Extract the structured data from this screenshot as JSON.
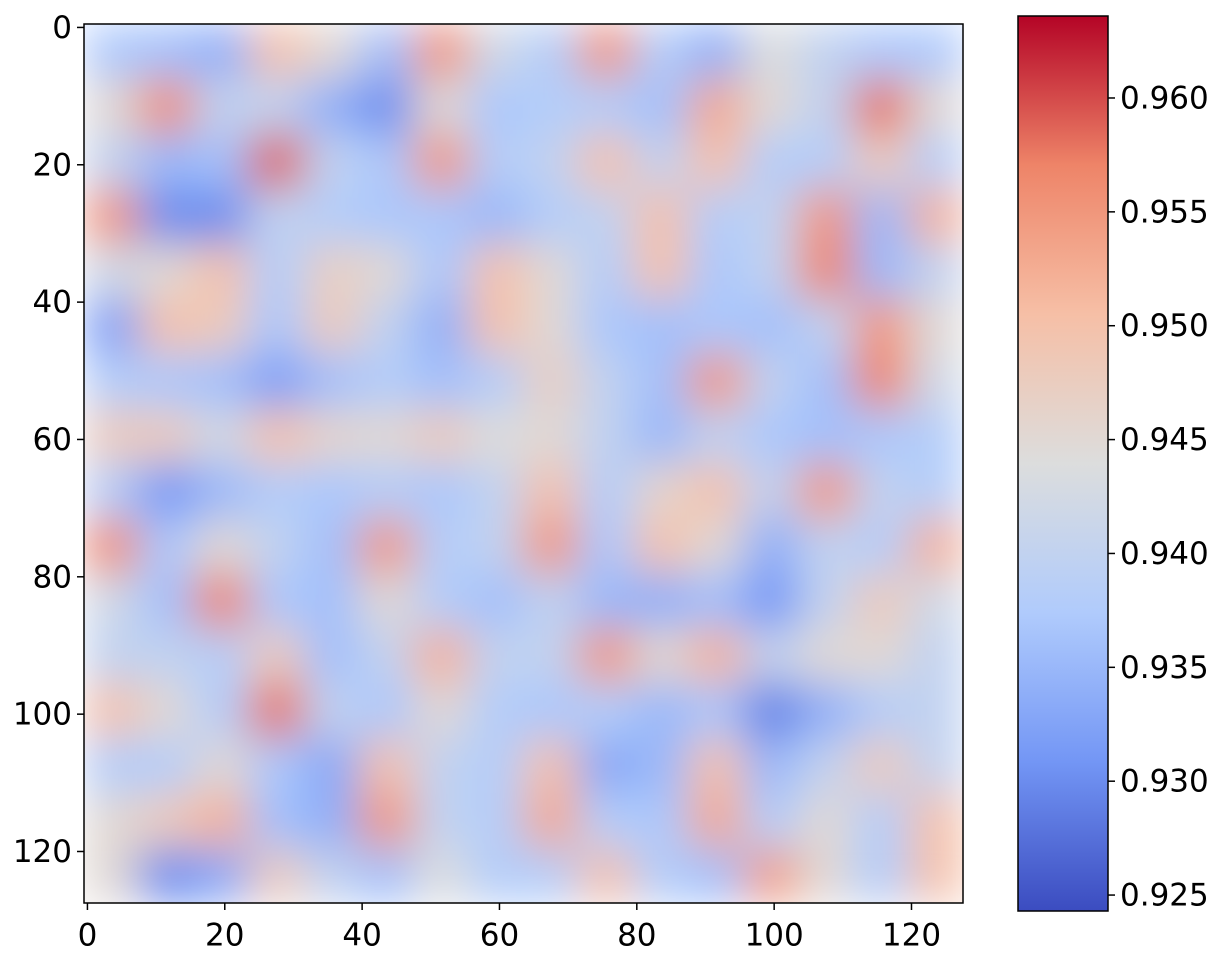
{
  "chart_data": {
    "type": "heatmap",
    "z": [
      [
        0.937,
        0.936,
        0.934,
        0.95,
        0.945,
        0.936,
        0.955,
        0.942,
        0.938,
        0.955,
        0.938,
        0.934,
        0.944,
        0.94,
        0.937,
        0.937
      ],
      [
        0.945,
        0.956,
        0.94,
        0.94,
        0.934,
        0.93,
        0.945,
        0.937,
        0.938,
        0.938,
        0.936,
        0.953,
        0.945,
        0.94,
        0.958,
        0.945
      ],
      [
        0.94,
        0.935,
        0.936,
        0.959,
        0.94,
        0.937,
        0.955,
        0.938,
        0.94,
        0.95,
        0.94,
        0.95,
        0.938,
        0.938,
        0.948,
        0.938
      ],
      [
        0.955,
        0.93,
        0.93,
        0.94,
        0.938,
        0.937,
        0.937,
        0.935,
        0.938,
        0.94,
        0.95,
        0.938,
        0.94,
        0.955,
        0.935,
        0.952
      ],
      [
        0.942,
        0.945,
        0.95,
        0.938,
        0.947,
        0.945,
        0.937,
        0.95,
        0.945,
        0.938,
        0.95,
        0.937,
        0.94,
        0.957,
        0.935,
        0.94
      ],
      [
        0.932,
        0.95,
        0.948,
        0.937,
        0.948,
        0.94,
        0.934,
        0.95,
        0.945,
        0.937,
        0.936,
        0.937,
        0.936,
        0.94,
        0.955,
        0.945
      ],
      [
        0.938,
        0.937,
        0.936,
        0.932,
        0.936,
        0.938,
        0.936,
        0.938,
        0.947,
        0.94,
        0.936,
        0.955,
        0.94,
        0.936,
        0.957,
        0.942
      ],
      [
        0.948,
        0.948,
        0.942,
        0.95,
        0.946,
        0.945,
        0.948,
        0.944,
        0.945,
        0.94,
        0.935,
        0.94,
        0.937,
        0.936,
        0.937,
        0.938
      ],
      [
        0.938,
        0.931,
        0.935,
        0.938,
        0.937,
        0.938,
        0.937,
        0.94,
        0.95,
        0.938,
        0.946,
        0.95,
        0.94,
        0.955,
        0.94,
        0.938
      ],
      [
        0.956,
        0.937,
        0.945,
        0.94,
        0.936,
        0.955,
        0.938,
        0.94,
        0.955,
        0.937,
        0.95,
        0.945,
        0.934,
        0.94,
        0.938,
        0.952
      ],
      [
        0.942,
        0.936,
        0.957,
        0.937,
        0.936,
        0.945,
        0.938,
        0.936,
        0.94,
        0.935,
        0.934,
        0.936,
        0.931,
        0.94,
        0.948,
        0.942
      ],
      [
        0.94,
        0.94,
        0.938,
        0.948,
        0.936,
        0.94,
        0.952,
        0.94,
        0.94,
        0.955,
        0.945,
        0.952,
        0.94,
        0.945,
        0.945,
        0.94
      ],
      [
        0.95,
        0.945,
        0.938,
        0.958,
        0.94,
        0.937,
        0.945,
        0.938,
        0.937,
        0.938,
        0.935,
        0.937,
        0.929,
        0.934,
        0.938,
        0.94
      ],
      [
        0.938,
        0.938,
        0.945,
        0.937,
        0.933,
        0.95,
        0.94,
        0.938,
        0.95,
        0.933,
        0.935,
        0.95,
        0.935,
        0.94,
        0.948,
        0.94
      ],
      [
        0.945,
        0.948,
        0.952,
        0.936,
        0.934,
        0.955,
        0.94,
        0.938,
        0.953,
        0.938,
        0.937,
        0.953,
        0.938,
        0.945,
        0.938,
        0.95
      ],
      [
        0.945,
        0.93,
        0.933,
        0.948,
        0.94,
        0.936,
        0.944,
        0.938,
        0.938,
        0.95,
        0.938,
        0.936,
        0.954,
        0.945,
        0.938,
        0.95
      ]
    ],
    "xlim": [
      -0.5,
      127.5
    ],
    "ylim": [
      127.5,
      -0.5
    ],
    "xticks": [
      0,
      20,
      40,
      60,
      80,
      100,
      120
    ],
    "yticks": [
      0,
      20,
      40,
      60,
      80,
      100,
      120
    ],
    "clim": [
      0.9243,
      0.9636
    ],
    "cticks": [
      0.925,
      {
        "value": 0.93,
        "label": "0.930"
      },
      0.935,
      {
        "value": 0.94,
        "label": "0.940"
      },
      0.945,
      {
        "value": 0.95,
        "label": "0.950"
      },
      0.955,
      {
        "value": 0.96,
        "label": "0.960"
      }
    ],
    "colormap": [
      "#3b4cc0",
      "#7396f5",
      "#b0cbfc",
      "#dcdddd",
      "#f6bfa6",
      "#ee8468",
      "#b40426"
    ]
  }
}
